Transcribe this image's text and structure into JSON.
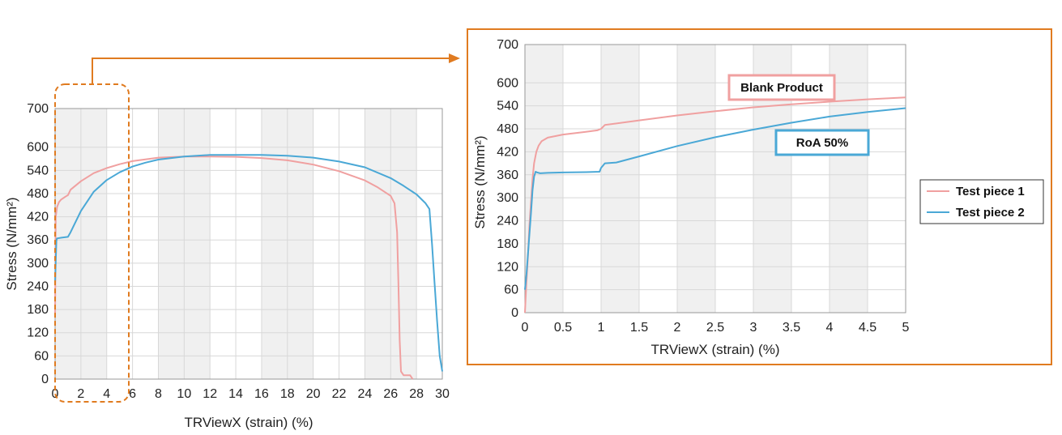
{
  "colors": {
    "series1": "#f0a0a0",
    "series2": "#4aa8d6",
    "highlight": "#e07b20",
    "band": "#f0f0f0",
    "grid": "#d8d8d8"
  },
  "legend": {
    "items": [
      "Test piece 1",
      "Test piece 2"
    ],
    "placement": "right"
  },
  "annotations": {
    "box1": "Blank Product",
    "box2": "RoA 50%"
  },
  "chart_data": [
    {
      "type": "line",
      "xlabel": "TRViewX (strain) (%)",
      "ylabel": "Stress (N/mm²)",
      "xlim": [
        0,
        30
      ],
      "ylim": [
        0,
        700
      ],
      "x_ticks": [
        0,
        2,
        4,
        6,
        8,
        10,
        12,
        14,
        16,
        18,
        20,
        22,
        24,
        26,
        28,
        30
      ],
      "y_ticks": [
        0,
        60,
        120,
        180,
        240,
        300,
        360,
        420,
        480,
        540,
        600,
        700
      ],
      "grid": true,
      "highlight_range_x": [
        0,
        5.8
      ],
      "series": [
        {
          "name": "Test piece 1",
          "x": [
            0,
            0.05,
            0.15,
            0.3,
            0.45,
            0.8,
            1,
            1.2,
            2,
            3,
            4,
            5,
            6,
            8,
            10,
            12,
            14,
            16,
            18,
            20,
            22,
            24,
            25,
            26,
            26.3,
            26.5,
            26.6,
            26.7,
            26.8,
            27,
            27.5,
            27.7
          ],
          "y": [
            170,
            420,
            445,
            458,
            464,
            472,
            476,
            490,
            512,
            533,
            546,
            556,
            564,
            573,
            576,
            576,
            575,
            572,
            566,
            555,
            538,
            514,
            496,
            474,
            455,
            380,
            250,
            100,
            20,
            10,
            10,
            0
          ]
        },
        {
          "name": "Test piece 2",
          "x": [
            0,
            0.1,
            0.15,
            0.5,
            1,
            1.2,
            2,
            3,
            4,
            5,
            6,
            7,
            8,
            10,
            12,
            14,
            16,
            18,
            20,
            22,
            24,
            26,
            27,
            28,
            28.7,
            29,
            29.2,
            29.4,
            29.6,
            29.8,
            30
          ],
          "y": [
            250,
            358,
            364,
            366,
            368,
            380,
            435,
            485,
            515,
            535,
            550,
            560,
            568,
            576,
            580,
            580,
            580,
            578,
            573,
            563,
            548,
            520,
            500,
            478,
            455,
            440,
            350,
            250,
            150,
            60,
            20
          ]
        }
      ]
    },
    {
      "type": "line",
      "xlabel": "TRViewX (strain) (%)",
      "ylabel": "Stress (N/mm²)",
      "xlim": [
        0,
        5
      ],
      "ylim": [
        0,
        700
      ],
      "x_ticks": [
        0,
        0.5,
        1,
        1.5,
        2,
        2.5,
        3,
        3.5,
        4,
        4.5,
        5
      ],
      "x_tick_labels": [
        "0",
        "0.5",
        "1",
        "1.5",
        "2",
        "2.5",
        "3",
        "3.5",
        "4",
        "4.5",
        "5"
      ],
      "y_ticks": [
        0,
        60,
        120,
        180,
        240,
        300,
        360,
        420,
        480,
        540,
        600,
        700
      ],
      "grid": true,
      "series": [
        {
          "name": "Test piece 1",
          "x": [
            0,
            0.02,
            0.04,
            0.06,
            0.08,
            0.1,
            0.12,
            0.15,
            0.18,
            0.22,
            0.3,
            0.5,
            0.8,
            0.95,
            1,
            1.05,
            1.5,
            2,
            2.5,
            3,
            3.5,
            4,
            4.5,
            5
          ],
          "y": [
            0,
            80,
            150,
            230,
            290,
            350,
            390,
            420,
            436,
            448,
            457,
            465,
            472,
            476,
            480,
            490,
            502,
            515,
            526,
            536,
            544,
            551,
            557,
            562
          ]
        },
        {
          "name": "Test piece 2",
          "x": [
            0,
            0.02,
            0.05,
            0.08,
            0.1,
            0.12,
            0.14,
            0.16,
            0.2,
            0.3,
            0.5,
            0.8,
            0.98,
            1,
            1.05,
            1.2,
            1.5,
            2,
            2.5,
            3,
            3.5,
            4,
            4.5,
            5
          ],
          "y": [
            60,
            100,
            180,
            260,
            320,
            355,
            368,
            366,
            364,
            365,
            366,
            367,
            368,
            378,
            390,
            392,
            408,
            435,
            458,
            478,
            496,
            512,
            524,
            534
          ]
        }
      ]
    }
  ]
}
